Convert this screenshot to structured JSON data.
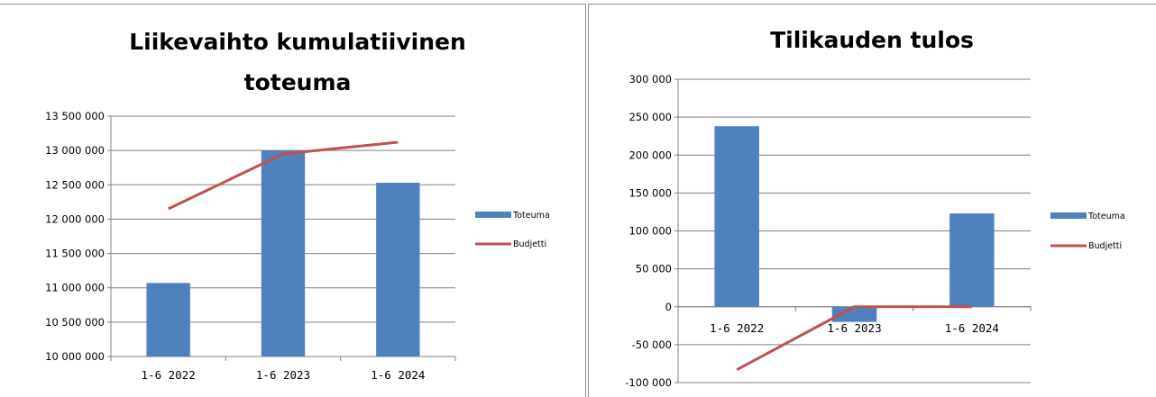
{
  "charts": [
    {
      "title_line1": "Liikevaihto kumulatiivinen",
      "title_line2": "toteuma",
      "yticks": [
        "10 000 000",
        "10 500 000",
        "11 000 000",
        "11 500 000",
        "12 000 000",
        "12 500 000",
        "13 000 000",
        "13 500 000"
      ],
      "legend": [
        "Toteuma",
        "Budjetti"
      ]
    },
    {
      "title_line1": "Tilikauden tulos",
      "yticks": [
        "-100 000",
        "-50 000",
        "0",
        "50 000",
        "100 000",
        "150 000",
        "200 000",
        "250 000",
        "300 000"
      ],
      "legend": [
        "Toteuma",
        "Budjetti"
      ]
    }
  ],
  "colors": {
    "bar": "#4f81bd",
    "line": "#c0504d",
    "grid": "#808080"
  },
  "chart_data": [
    {
      "type": "bar",
      "title": "Liikevaihto kumulatiivinen toteuma",
      "categories": [
        "1-6 2022",
        "1-6 2023",
        "1-6 2024"
      ],
      "series": [
        {
          "name": "Toteuma",
          "type": "bar",
          "values": [
            11070000,
            13000000,
            12530000
          ]
        },
        {
          "name": "Budjetti",
          "type": "line",
          "values": [
            12150000,
            12950000,
            13120000
          ]
        }
      ],
      "ylim": [
        10000000,
        13500000
      ],
      "grid": true,
      "legend_position": "right"
    },
    {
      "type": "bar",
      "title": "Tilikauden tulos",
      "categories": [
        "1-6 2022",
        "1-6 2023",
        "1-6 2024"
      ],
      "series": [
        {
          "name": "Toteuma",
          "type": "bar",
          "values": [
            238000,
            -20000,
            123000
          ]
        },
        {
          "name": "Budjetti",
          "type": "line",
          "values": [
            -83000,
            0,
            0
          ]
        }
      ],
      "ylim": [
        -100000,
        300000
      ],
      "grid": true,
      "legend_position": "right"
    }
  ]
}
